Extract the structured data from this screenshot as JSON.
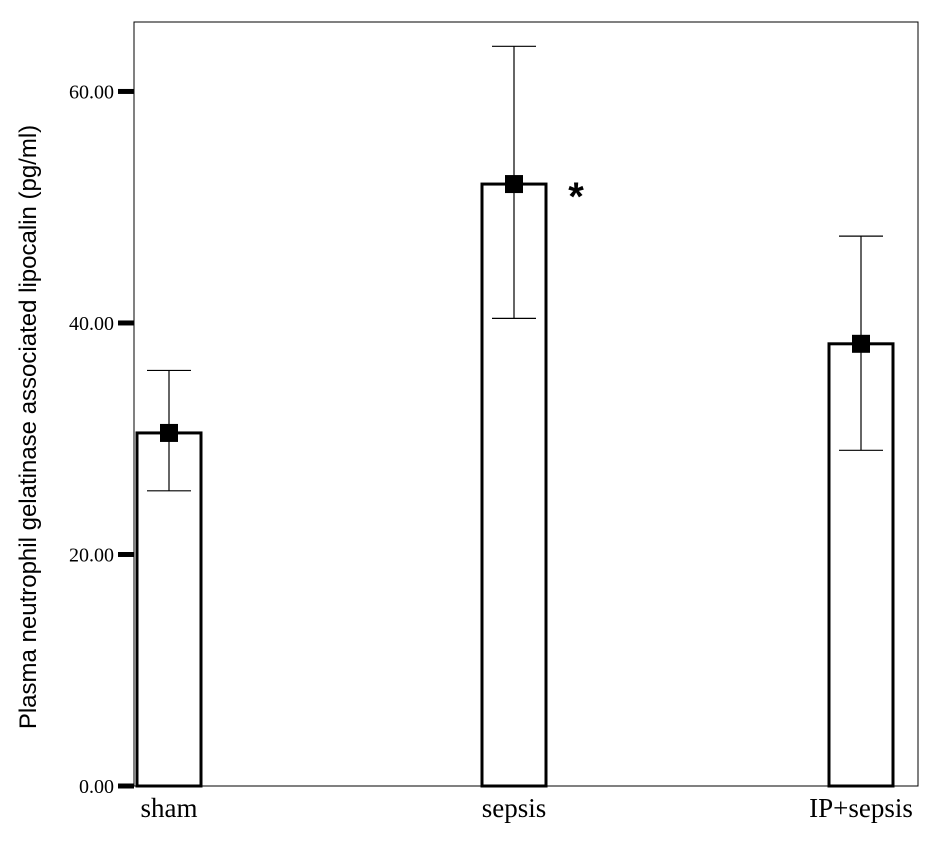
{
  "chart_data": {
    "type": "bar",
    "title": "",
    "xlabel": "",
    "ylabel": "Plasma neutrophil gelatinase associated lipocalin (pg/ml)",
    "ylim": [
      0,
      66
    ],
    "yticks": [
      "0.00",
      "20.00",
      "40.00",
      "60.00"
    ],
    "tick_values": [
      0,
      20,
      40,
      60
    ],
    "categories": [
      "sham",
      "sepsis",
      "IP+sepsis"
    ],
    "values": [
      30.5,
      52.0,
      38.2
    ],
    "error_low": [
      25.5,
      40.4,
      29.0
    ],
    "error_high": [
      35.9,
      63.9,
      47.5
    ],
    "annotations": [
      {
        "category": "sepsis",
        "text": "*"
      }
    ],
    "grid": false,
    "legend": "none",
    "colors": {
      "bar_fill": "#ffffff",
      "bar_stroke": "#000000",
      "marker": "#000000"
    }
  }
}
